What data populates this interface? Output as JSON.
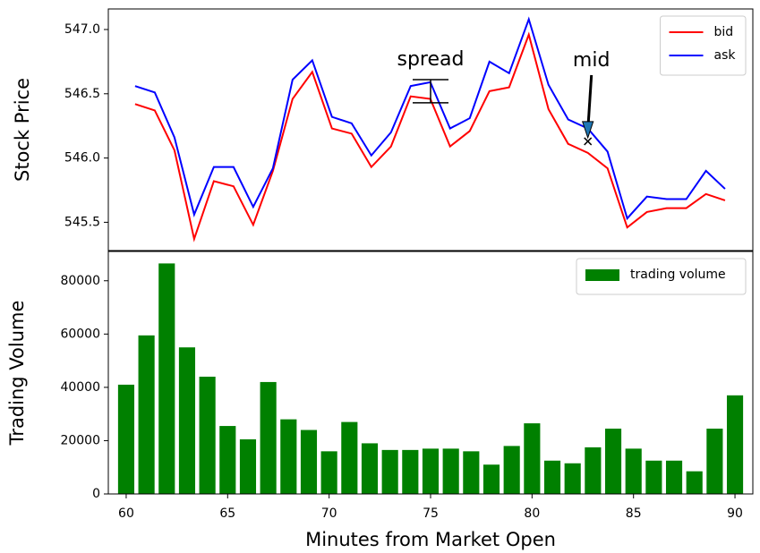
{
  "chart_data": [
    {
      "type": "line",
      "ylabel": "Stock Price",
      "x": [
        60.44,
        61.41,
        62.38,
        63.35,
        64.32,
        65.29,
        66.26,
        67.23,
        68.2,
        69.17,
        70.14,
        71.11,
        72.08,
        73.05,
        74.02,
        74.99,
        75.96,
        76.93,
        77.9,
        78.87,
        79.84,
        80.81,
        81.78,
        82.75,
        83.72,
        84.69,
        85.66,
        86.63,
        87.6,
        88.57,
        89.51
      ],
      "series": [
        {
          "name": "bid",
          "color": "#ff0000",
          "values": [
            546.42,
            546.37,
            546.06,
            545.37,
            545.82,
            545.78,
            545.48,
            545.9,
            546.46,
            546.67,
            546.23,
            546.19,
            545.93,
            546.09,
            546.48,
            546.46,
            546.09,
            546.21,
            546.52,
            546.55,
            546.96,
            546.38,
            546.11,
            546.04,
            545.92,
            545.46,
            545.58,
            545.61,
            545.61,
            545.72,
            545.67
          ]
        },
        {
          "name": "ask",
          "color": "#0000ff",
          "values": [
            546.56,
            546.51,
            546.16,
            545.56,
            545.93,
            545.93,
            545.62,
            545.92,
            546.61,
            546.76,
            546.32,
            546.27,
            546.02,
            546.2,
            546.56,
            546.59,
            546.23,
            546.31,
            546.75,
            546.66,
            547.08,
            546.57,
            546.3,
            546.23,
            546.05,
            545.53,
            545.7,
            545.68,
            545.68,
            545.9,
            545.76
          ]
        }
      ],
      "annotations": [
        {
          "text": "spread",
          "x": 75,
          "y": [
            546.43,
            546.61
          ]
        },
        {
          "text": "mid",
          "x": 82.75,
          "y": 546.13
        }
      ],
      "xlim": [
        59.12,
        90.88
      ],
      "ylim": [
        545.28,
        547.16
      ],
      "yticks": [
        {
          "value": 545.5,
          "label": "545.5"
        },
        {
          "value": 546,
          "label": "546.0"
        },
        {
          "value": 546.5,
          "label": "546.5"
        },
        {
          "value": 547,
          "label": "547.0"
        }
      ],
      "legend": "upper right"
    },
    {
      "type": "bar",
      "xlabel": "Minutes from Market Open",
      "ylabel": "Trading Volume",
      "x": [
        60,
        61,
        62,
        63,
        64,
        65,
        66,
        67,
        68,
        69,
        70,
        71,
        72,
        73,
        74,
        75,
        76,
        77,
        78,
        79,
        80,
        81,
        82,
        83,
        84,
        85,
        86,
        87,
        88,
        89,
        90
      ],
      "series": [
        {
          "name": "trading volume",
          "color": "#008000",
          "values": [
            41000,
            59500,
            86500,
            55000,
            44000,
            25500,
            20500,
            42000,
            28000,
            24000,
            16000,
            27000,
            19000,
            16500,
            16500,
            17000,
            17000,
            16000,
            11000,
            18000,
            26500,
            12500,
            11500,
            17500,
            24500,
            17000,
            12500,
            12500,
            8500,
            24500,
            37000
          ]
        }
      ],
      "xlim": [
        59.12,
        90.88
      ],
      "ylim": [
        0,
        91000
      ],
      "xticks": [
        60,
        65,
        70,
        75,
        80,
        85,
        90
      ],
      "yticks": [
        0,
        20000,
        40000,
        60000,
        80000
      ],
      "legend": "upper right"
    }
  ]
}
